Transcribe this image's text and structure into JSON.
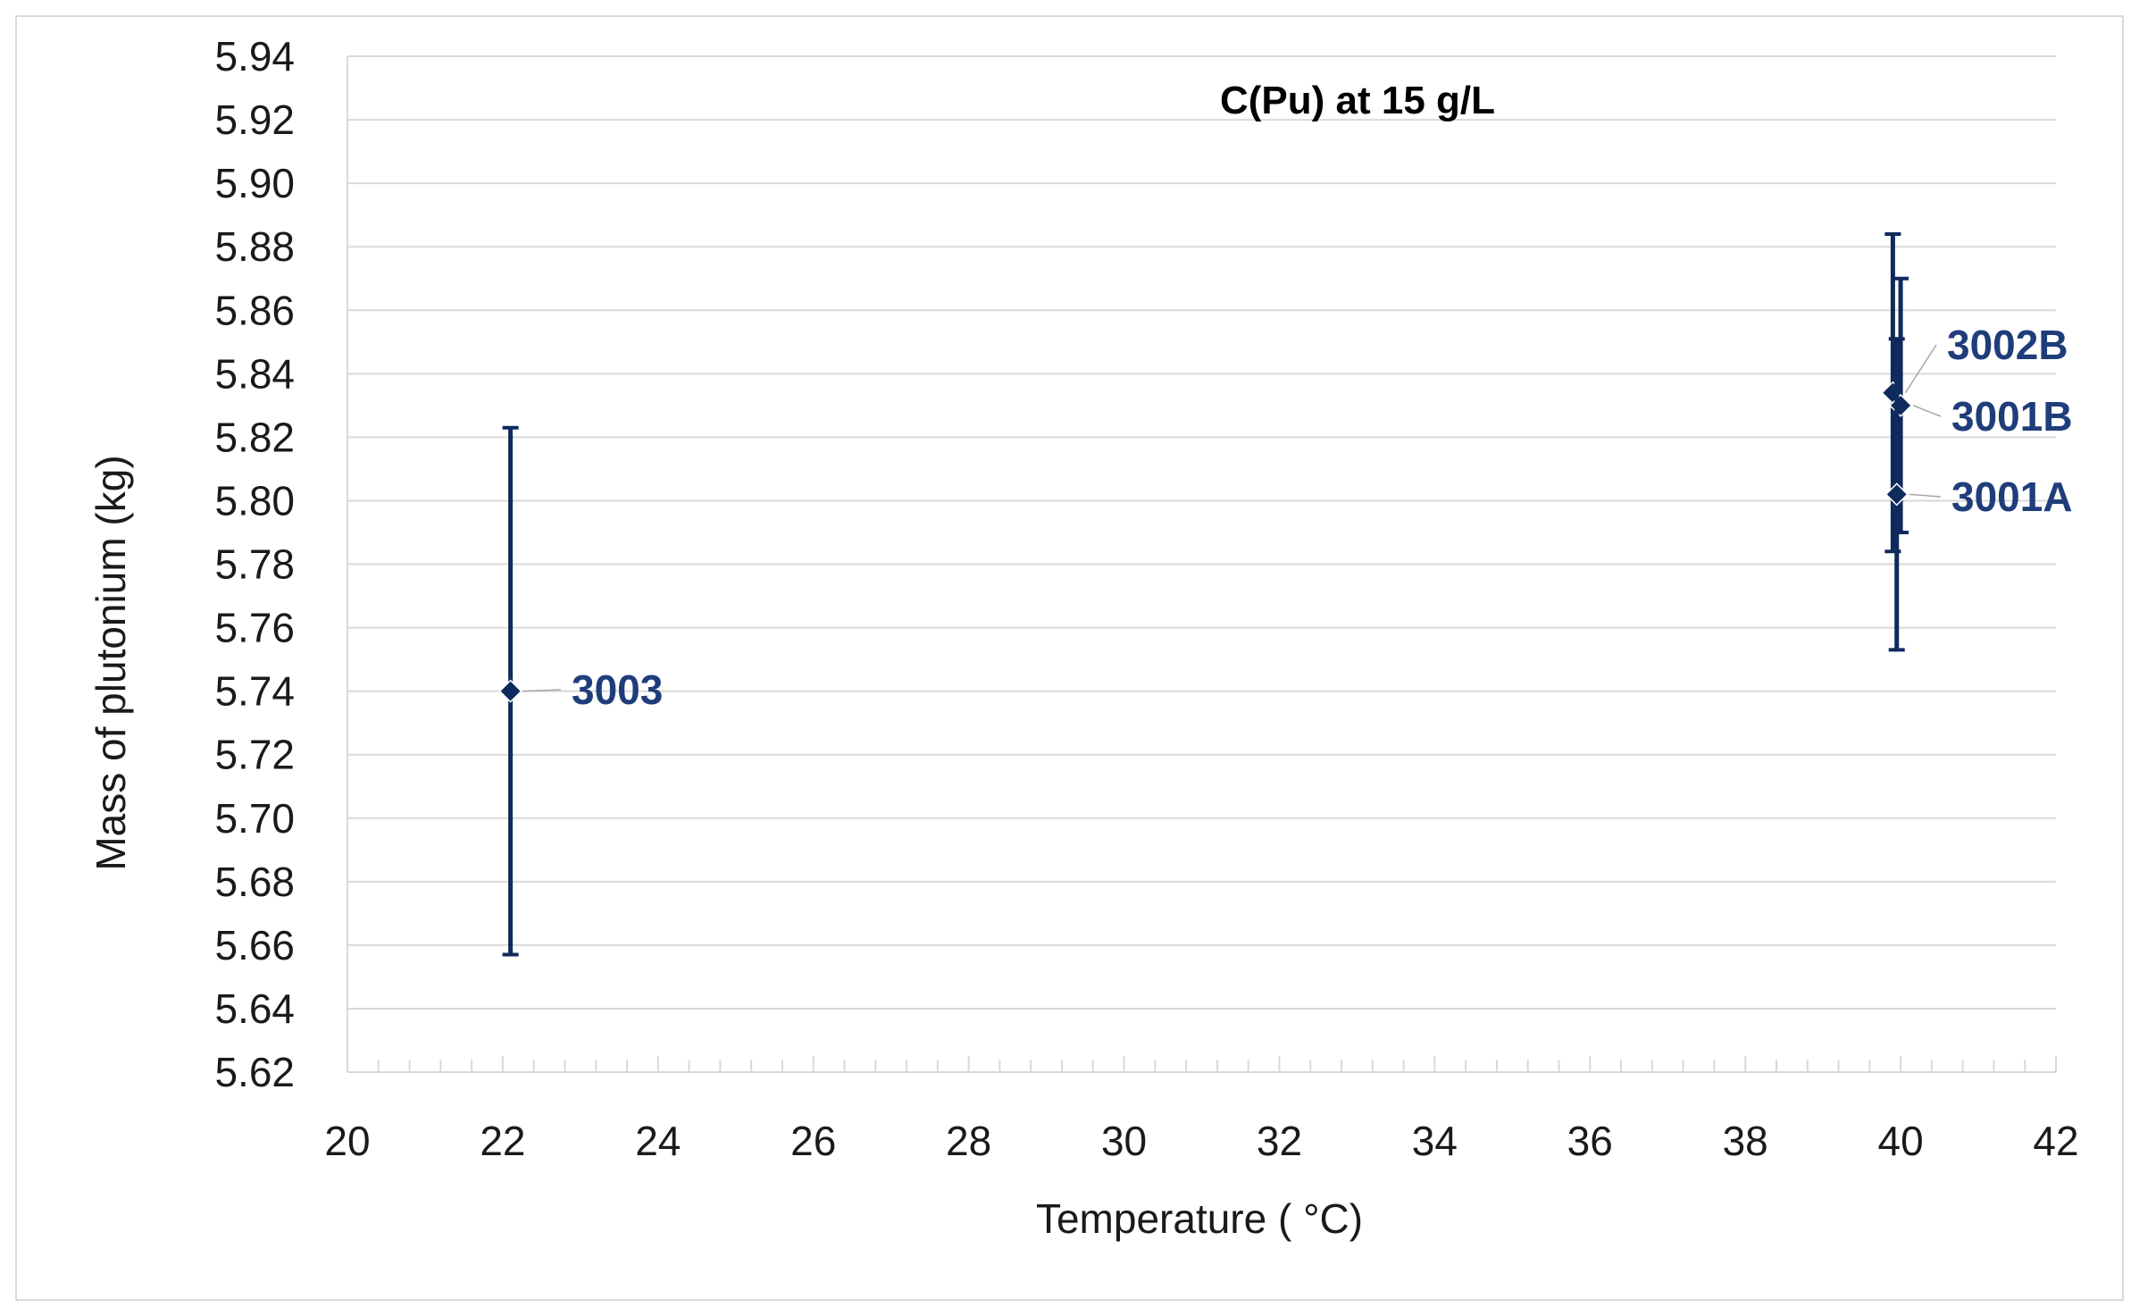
{
  "chart_data": {
    "type": "scatter",
    "title": "C(Pu) at 15 g/L",
    "xlabel": "Temperature  ( °C)",
    "ylabel": "Mass of plutonium  (kg)",
    "xlim": [
      20,
      42
    ],
    "ylim": [
      5.62,
      5.94
    ],
    "x_ticks": [
      "20",
      "22",
      "24",
      "26",
      "28",
      "30",
      "32",
      "34",
      "36",
      "38",
      "40",
      "42"
    ],
    "y_ticks": [
      "5.62",
      "5.64",
      "5.66",
      "5.68",
      "5.70",
      "5.72",
      "5.74",
      "5.76",
      "5.78",
      "5.80",
      "5.82",
      "5.84",
      "5.86",
      "5.88",
      "5.90",
      "5.92",
      "5.94"
    ],
    "grid": "horizontal",
    "points": [
      {
        "label": "3003",
        "x": 22.1,
        "y": 5.74,
        "err_low": 5.657,
        "err_high": 5.823
      },
      {
        "label": "3002B",
        "x": 39.9,
        "y": 5.834,
        "err_low": 5.784,
        "err_high": 5.884
      },
      {
        "label": "3001B",
        "x": 40.0,
        "y": 5.83,
        "err_low": 5.79,
        "err_high": 5.87
      },
      {
        "label": "3001A",
        "x": 39.95,
        "y": 5.802,
        "err_low": 5.753,
        "err_high": 5.851
      }
    ],
    "colors": {
      "series": "#0f2a5c",
      "grid": "#d9d9d9",
      "label": "#1f3d7a"
    }
  }
}
